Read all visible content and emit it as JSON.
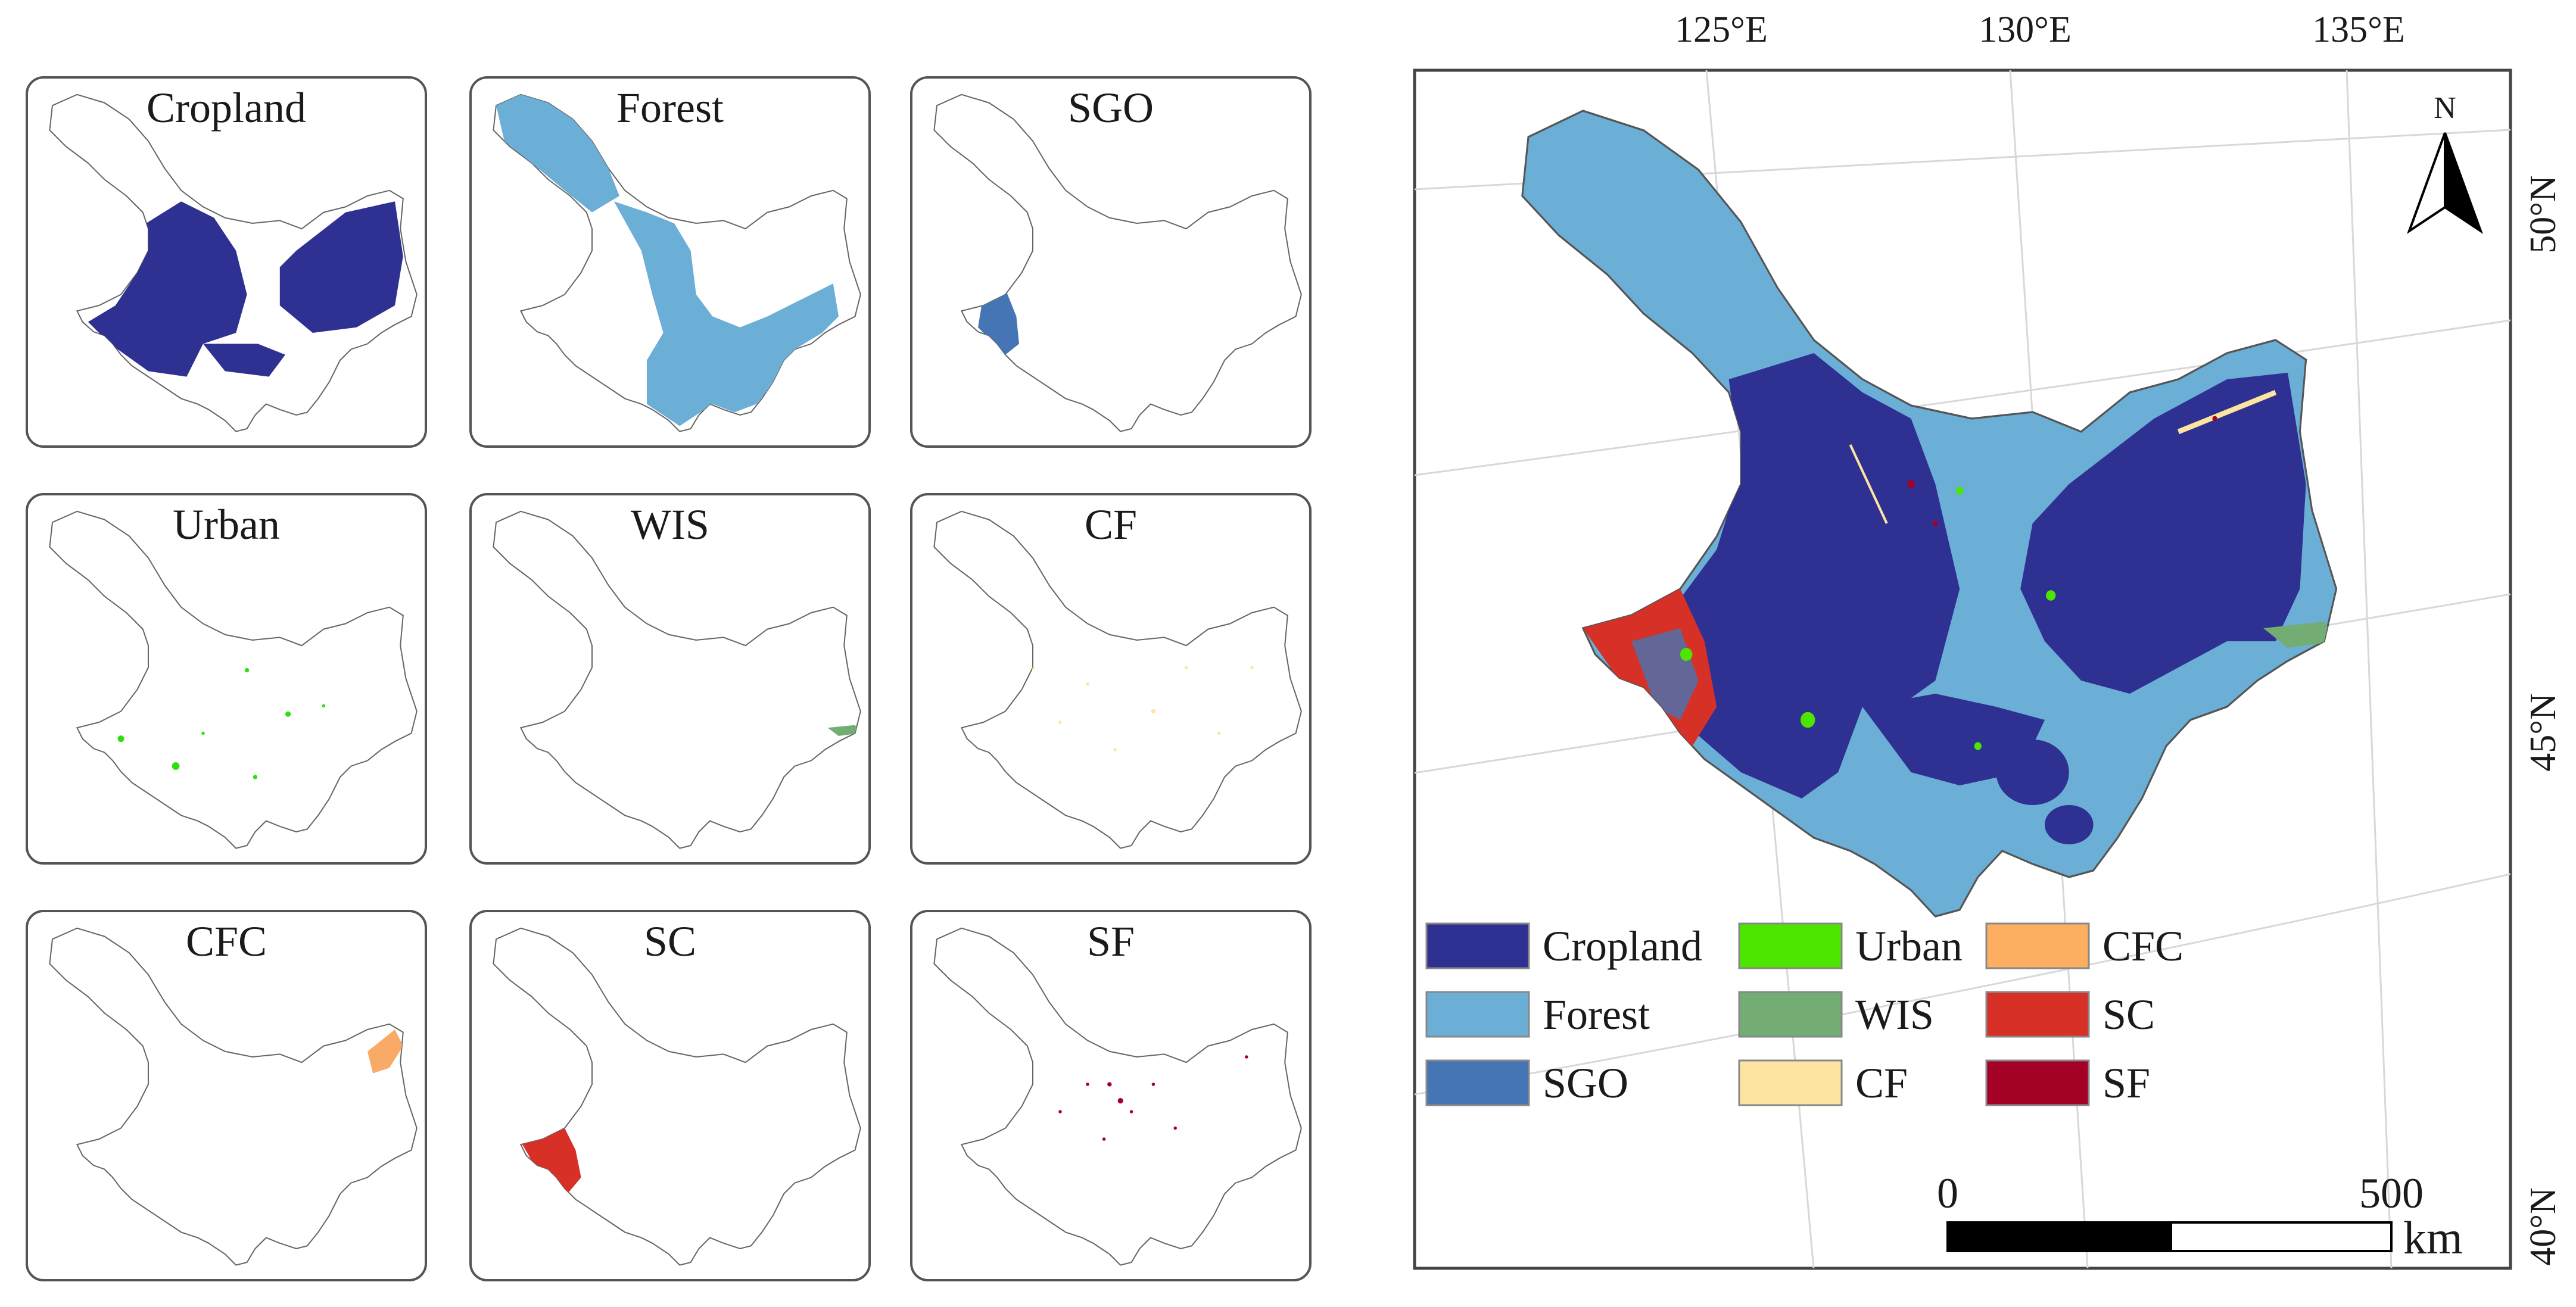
{
  "small_maps": [
    {
      "title": "Cropland",
      "color": "#2E3192"
    },
    {
      "title": "Forest",
      "color": "#6BAED6"
    },
    {
      "title": "SGO",
      "color": "#4575B4"
    },
    {
      "title": "Urban",
      "color": "#33DD11"
    },
    {
      "title": "WIS",
      "color": "#74AD74"
    },
    {
      "title": "CF",
      "color": "#FDE4A0"
    },
    {
      "title": "CFC",
      "color": "#F9AA66"
    },
    {
      "title": "SC",
      "color": "#D73027"
    },
    {
      "title": "SF",
      "color": "#A50026"
    }
  ],
  "main_map": {
    "north_label": "N",
    "lon_labels": [
      "125°E",
      "130°E",
      "135°E"
    ],
    "lat_labels": [
      "50°N",
      "45°N",
      "40°N"
    ],
    "legend": [
      {
        "label": "Cropland",
        "color": "#2E3192"
      },
      {
        "label": "Forest",
        "color": "#6BAED6"
      },
      {
        "label": "SGO",
        "color": "#4575B4"
      },
      {
        "label": "Urban",
        "color": "#4CE600"
      },
      {
        "label": "WIS",
        "color": "#74AD74"
      },
      {
        "label": "CF",
        "color": "#FDE4A0"
      },
      {
        "label": "CFC",
        "color": "#FDAE61"
      },
      {
        "label": "SC",
        "color": "#D73027"
      },
      {
        "label": "SF",
        "color": "#A50026"
      }
    ],
    "scale_bar": {
      "start_label": "0",
      "end_label": "500",
      "unit": "km"
    }
  }
}
